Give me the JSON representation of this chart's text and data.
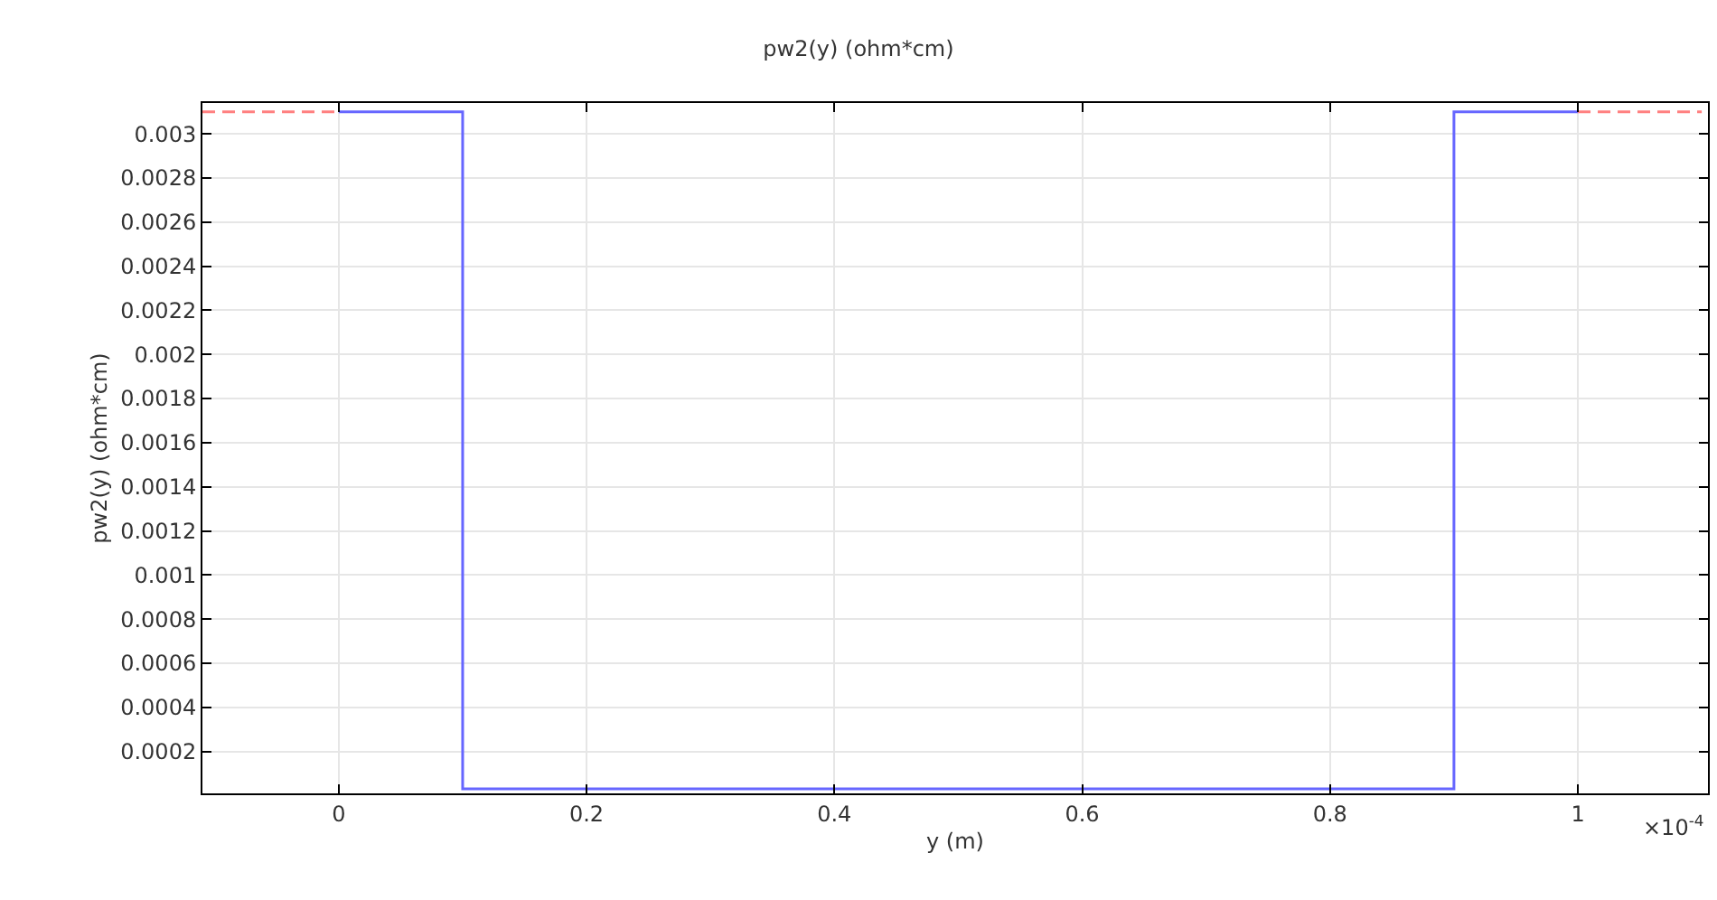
{
  "chart_data": {
    "type": "line",
    "title": "pw2(y) (ohm*cm)",
    "xlabel": "y (m)",
    "ylabel": "pw2(y) (ohm*cm)",
    "series": [
      {
        "color": "#6666ff",
        "x": [
          0,
          0.1,
          0.1,
          0.9,
          0.9,
          1
        ],
        "values": [
          0.0031,
          0.0031,
          3e-05,
          3e-05,
          0.0031,
          0.0031
        ],
        "line_style": "solid"
      },
      {
        "color": "#ff8080",
        "x": [
          -0.11,
          0,
          0.5,
          1,
          1.1
        ],
        "values": [
          0.0031,
          0.0031,
          null,
          0.0031,
          0.0031
        ],
        "line_style": "dashed"
      }
    ],
    "xlim": [
      -0.11,
      1.105
    ],
    "xticks": [
      0,
      0.2,
      0.4,
      0.6,
      0.8,
      1
    ],
    "ylim": [
      1e-05,
      0.00314
    ],
    "yticks": [
      0.0002,
      0.0004,
      0.0006,
      0.0008,
      0.001,
      0.0012,
      0.0014,
      0.0016,
      0.0018,
      0.002,
      0.0022,
      0.0024,
      0.0026,
      0.0028,
      0.003
    ],
    "annotations": [
      "×10$^{-4}$"
    ],
    "grid": true,
    "marker": "none"
  }
}
